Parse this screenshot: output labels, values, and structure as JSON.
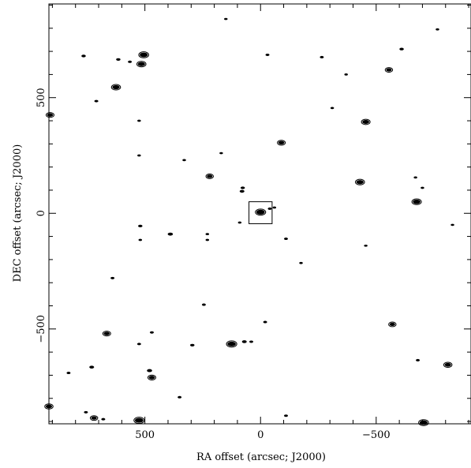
{
  "chart_data": {
    "type": "scatter",
    "title": "",
    "xlabel": "RA offset (arcsec; J2000)",
    "ylabel": "DEC offset (arcsec; J2000)",
    "x_inverted": true,
    "xlim": [
      915,
      -910
    ],
    "ylim": [
      -910,
      905
    ],
    "grid": false,
    "x_ticks": [
      500,
      0,
      -500
    ],
    "x_tick_labels": [
      "500",
      "0",
      "−500"
    ],
    "y_ticks": [
      500,
      0,
      -500
    ],
    "y_tick_labels": [
      "500",
      "0",
      "−500"
    ],
    "box": {
      "x0": 50,
      "x1": -50,
      "y0": -45,
      "y1": 50
    },
    "sources": [
      {
        "x": 0,
        "y": 5,
        "size": 1.6
      },
      {
        "x": 80,
        "y": 95,
        "size": 0.7
      },
      {
        "x": 77,
        "y": 110,
        "size": 0.6
      },
      {
        "x": -40,
        "y": 20,
        "size": 0.5
      },
      {
        "x": -60,
        "y": 25,
        "size": 0.4
      },
      {
        "x": 170,
        "y": 260,
        "size": 0.4
      },
      {
        "x": 220,
        "y": 160,
        "size": 0.9
      },
      {
        "x": -90,
        "y": 305,
        "size": 1.0
      },
      {
        "x": -430,
        "y": 135,
        "size": 1.3
      },
      {
        "x": -455,
        "y": 395,
        "size": 1.2
      },
      {
        "x": -675,
        "y": 50,
        "size": 1.4
      },
      {
        "x": -555,
        "y": 620,
        "size": 0.9
      },
      {
        "x": -610,
        "y": 710,
        "size": 0.6
      },
      {
        "x": -265,
        "y": 675,
        "size": 0.5
      },
      {
        "x": -30,
        "y": 685,
        "size": 0.5
      },
      {
        "x": 505,
        "y": 685,
        "size": 1.5
      },
      {
        "x": 515,
        "y": 645,
        "size": 1.3
      },
      {
        "x": 625,
        "y": 545,
        "size": 1.3
      },
      {
        "x": 565,
        "y": 655,
        "size": 0.5
      },
      {
        "x": 615,
        "y": 665,
        "size": 0.6
      },
      {
        "x": 765,
        "y": 680,
        "size": 0.6
      },
      {
        "x": 710,
        "y": 485,
        "size": 0.5
      },
      {
        "x": 910,
        "y": 425,
        "size": 1.0
      },
      {
        "x": 525,
        "y": 400,
        "size": 0.4
      },
      {
        "x": 525,
        "y": 250,
        "size": 0.4
      },
      {
        "x": 520,
        "y": -55,
        "size": 0.6
      },
      {
        "x": 520,
        "y": -115,
        "size": 0.4
      },
      {
        "x": 390,
        "y": -90,
        "size": 0.8
      },
      {
        "x": 230,
        "y": -90,
        "size": 0.4
      },
      {
        "x": 230,
        "y": -115,
        "size": 0.4
      },
      {
        "x": -110,
        "y": -110,
        "size": 0.5
      },
      {
        "x": -175,
        "y": -215,
        "size": 0.4
      },
      {
        "x": 640,
        "y": -280,
        "size": 0.5
      },
      {
        "x": 245,
        "y": -395,
        "size": 0.5
      },
      {
        "x": 665,
        "y": -520,
        "size": 1.0
      },
      {
        "x": 525,
        "y": -565,
        "size": 0.5
      },
      {
        "x": 470,
        "y": -515,
        "size": 0.5
      },
      {
        "x": 295,
        "y": -570,
        "size": 0.6
      },
      {
        "x": 125,
        "y": -565,
        "size": 1.6
      },
      {
        "x": 70,
        "y": -555,
        "size": 0.7
      },
      {
        "x": 40,
        "y": -555,
        "size": 0.5
      },
      {
        "x": -20,
        "y": -470,
        "size": 0.5
      },
      {
        "x": -570,
        "y": -480,
        "size": 0.9
      },
      {
        "x": -680,
        "y": -635,
        "size": 0.5
      },
      {
        "x": -810,
        "y": -655,
        "size": 1.1
      },
      {
        "x": 730,
        "y": -665,
        "size": 0.7
      },
      {
        "x": 830,
        "y": -690,
        "size": 0.5
      },
      {
        "x": 480,
        "y": -680,
        "size": 0.8
      },
      {
        "x": 470,
        "y": -710,
        "size": 1.0
      },
      {
        "x": 915,
        "y": -835,
        "size": 1.1
      },
      {
        "x": 755,
        "y": -860,
        "size": 0.5
      },
      {
        "x": 720,
        "y": -885,
        "size": 0.9
      },
      {
        "x": 680,
        "y": -890,
        "size": 0.5
      },
      {
        "x": 525,
        "y": -895,
        "size": 1.6
      },
      {
        "x": 350,
        "y": -795,
        "size": 0.5
      },
      {
        "x": -705,
        "y": -905,
        "size": 1.5
      },
      {
        "x": -110,
        "y": -875,
        "size": 0.5
      },
      {
        "x": 330,
        "y": 230,
        "size": 0.4
      },
      {
        "x": -310,
        "y": 455,
        "size": 0.4
      },
      {
        "x": -455,
        "y": -140,
        "size": 0.4
      },
      {
        "x": -670,
        "y": 155,
        "size": 0.4
      },
      {
        "x": -700,
        "y": 110,
        "size": 0.4
      },
      {
        "x": -830,
        "y": -50,
        "size": 0.4
      },
      {
        "x": 150,
        "y": 840,
        "size": 0.4
      },
      {
        "x": -765,
        "y": 795,
        "size": 0.4
      },
      {
        "x": -370,
        "y": 600,
        "size": 0.4
      },
      {
        "x": 90,
        "y": -40,
        "size": 0.4
      }
    ]
  }
}
